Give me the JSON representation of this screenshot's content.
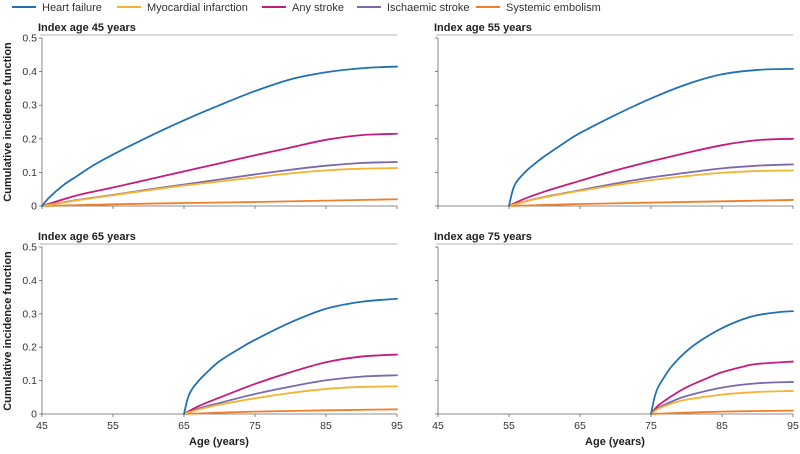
{
  "chart_data": {
    "type": "line",
    "ylabel": "Cumulative incidence function",
    "xlabel": "Age (years)",
    "xlim": [
      45,
      95
    ],
    "ylim": [
      0,
      0.5
    ],
    "xticks": [
      "45",
      "55",
      "65",
      "75",
      "85",
      "95"
    ],
    "yticks": [
      "0",
      "0.1",
      "0.2",
      "0.3",
      "0.4",
      "0.5"
    ],
    "legend": [
      {
        "name": "Heart failure",
        "color": "#2171b5"
      },
      {
        "name": "Myocardial infarction",
        "color": "#f5b331"
      },
      {
        "name": "Any stroke",
        "color": "#c51b7d"
      },
      {
        "name": "Ischaemic stroke",
        "color": "#7b68ae"
      },
      {
        "name": "Systemic embolism",
        "color": "#f07f2a"
      }
    ],
    "panels": [
      {
        "title": "Index age 45 years",
        "series": [
          {
            "name": "Heart failure",
            "x": [
              45,
              46,
              48,
              50,
              52,
              55,
              60,
              65,
              70,
              75,
              80,
              85,
              90,
              95
            ],
            "y": [
              0,
              0.025,
              0.062,
              0.09,
              0.118,
              0.153,
              0.206,
              0.255,
              0.3,
              0.342,
              0.377,
              0.398,
              0.41,
              0.415
            ]
          },
          {
            "name": "Myocardial infarction",
            "x": [
              45,
              50,
              55,
              60,
              65,
              70,
              75,
              80,
              85,
              90,
              95
            ],
            "y": [
              0,
              0.017,
              0.032,
              0.047,
              0.061,
              0.073,
              0.085,
              0.097,
              0.106,
              0.111,
              0.113
            ]
          },
          {
            "name": "Any stroke",
            "x": [
              45,
              50,
              55,
              60,
              65,
              70,
              75,
              80,
              85,
              90,
              95
            ],
            "y": [
              0,
              0.032,
              0.055,
              0.079,
              0.103,
              0.127,
              0.151,
              0.174,
              0.197,
              0.211,
              0.215
            ]
          },
          {
            "name": "Ischaemic stroke",
            "x": [
              45,
              50,
              55,
              60,
              65,
              70,
              75,
              80,
              85,
              90,
              95
            ],
            "y": [
              0,
              0.018,
              0.033,
              0.049,
              0.064,
              0.079,
              0.094,
              0.108,
              0.12,
              0.128,
              0.131
            ]
          },
          {
            "name": "Systemic embolism",
            "x": [
              45,
              55,
              65,
              75,
              85,
              95
            ],
            "y": [
              0,
              0.005,
              0.009,
              0.012,
              0.016,
              0.02
            ]
          }
        ]
      },
      {
        "title": "Index age 55 years",
        "series": [
          {
            "name": "Heart failure",
            "x": [
              45,
              55,
              55.5,
              56,
              57,
              58,
              60,
              63,
              65,
              70,
              75,
              80,
              85,
              90,
              95
            ],
            "y": [
              null,
              0,
              0.045,
              0.07,
              0.095,
              0.115,
              0.148,
              0.191,
              0.217,
              0.271,
              0.32,
              0.362,
              0.392,
              0.405,
              0.408
            ]
          },
          {
            "name": "Myocardial infarction",
            "x": [
              45,
              55,
              57,
              60,
              65,
              70,
              75,
              80,
              85,
              90,
              95
            ],
            "y": [
              null,
              0,
              0.012,
              0.026,
              0.045,
              0.062,
              0.077,
              0.089,
              0.099,
              0.104,
              0.106
            ]
          },
          {
            "name": "Any stroke",
            "x": [
              45,
              55,
              57,
              60,
              65,
              70,
              75,
              80,
              85,
              90,
              95
            ],
            "y": [
              null,
              0,
              0.02,
              0.043,
              0.075,
              0.106,
              0.133,
              0.158,
              0.181,
              0.196,
              0.2
            ]
          },
          {
            "name": "Ischaemic stroke",
            "x": [
              45,
              55,
              57,
              60,
              65,
              70,
              75,
              80,
              85,
              90,
              95
            ],
            "y": [
              null,
              0,
              0.012,
              0.027,
              0.047,
              0.067,
              0.085,
              0.099,
              0.112,
              0.12,
              0.124
            ]
          },
          {
            "name": "Systemic embolism",
            "x": [
              45,
              55,
              65,
              75,
              85,
              95
            ],
            "y": [
              null,
              0,
              0.006,
              0.01,
              0.014,
              0.018
            ]
          }
        ]
      },
      {
        "title": "Index age 65 years",
        "series": [
          {
            "name": "Heart failure",
            "x": [
              45,
              65,
              65.5,
              66,
              67,
              68,
              70,
              73,
              75,
              80,
              85,
              90,
              95
            ],
            "y": [
              null,
              0,
              0.045,
              0.07,
              0.098,
              0.12,
              0.158,
              0.198,
              0.222,
              0.274,
              0.315,
              0.336,
              0.345
            ]
          },
          {
            "name": "Myocardial infarction",
            "x": [
              45,
              65,
              67,
              70,
              75,
              80,
              85,
              90,
              95
            ],
            "y": [
              null,
              0,
              0.013,
              0.028,
              0.047,
              0.063,
              0.075,
              0.081,
              0.083
            ]
          },
          {
            "name": "Any stroke",
            "x": [
              45,
              65,
              67,
              70,
              75,
              80,
              85,
              90,
              95
            ],
            "y": [
              null,
              0,
              0.023,
              0.049,
              0.09,
              0.125,
              0.155,
              0.172,
              0.178
            ]
          },
          {
            "name": "Ischaemic stroke",
            "x": [
              45,
              65,
              67,
              70,
              75,
              80,
              85,
              90,
              95
            ],
            "y": [
              null,
              0,
              0.016,
              0.033,
              0.06,
              0.082,
              0.101,
              0.112,
              0.116
            ]
          },
          {
            "name": "Systemic embolism",
            "x": [
              45,
              65,
              70,
              75,
              85,
              95
            ],
            "y": [
              null,
              0,
              0.004,
              0.007,
              0.011,
              0.014
            ]
          }
        ]
      },
      {
        "title": "Index age 75 years",
        "series": [
          {
            "name": "Heart failure",
            "x": [
              45,
              75,
              75.5,
              76,
              77,
              78,
              80,
              82,
              85,
              88,
              90,
              93,
              95
            ],
            "y": [
              null,
              0,
              0.05,
              0.08,
              0.115,
              0.145,
              0.188,
              0.22,
              0.257,
              0.284,
              0.296,
              0.305,
              0.308
            ]
          },
          {
            "name": "Myocardial infarction",
            "x": [
              45,
              75,
              76,
              78,
              80,
              85,
              90,
              95
            ],
            "y": [
              null,
              0,
              0.015,
              0.032,
              0.043,
              0.058,
              0.066,
              0.069
            ]
          },
          {
            "name": "Any stroke",
            "x": [
              45,
              75,
              76,
              78,
              80,
              83,
              85,
              88,
              90,
              95
            ],
            "y": [
              null,
              0,
              0.025,
              0.055,
              0.08,
              0.108,
              0.125,
              0.142,
              0.15,
              0.157
            ]
          },
          {
            "name": "Ischaemic stroke",
            "x": [
              45,
              75,
              76,
              78,
              80,
              85,
              90,
              95
            ],
            "y": [
              null,
              0,
              0.018,
              0.038,
              0.054,
              0.079,
              0.092,
              0.096
            ]
          },
          {
            "name": "Systemic embolism",
            "x": [
              45,
              75,
              80,
              85,
              90,
              95
            ],
            "y": [
              null,
              0,
              0.004,
              0.007,
              0.009,
              0.01
            ]
          }
        ]
      }
    ]
  }
}
